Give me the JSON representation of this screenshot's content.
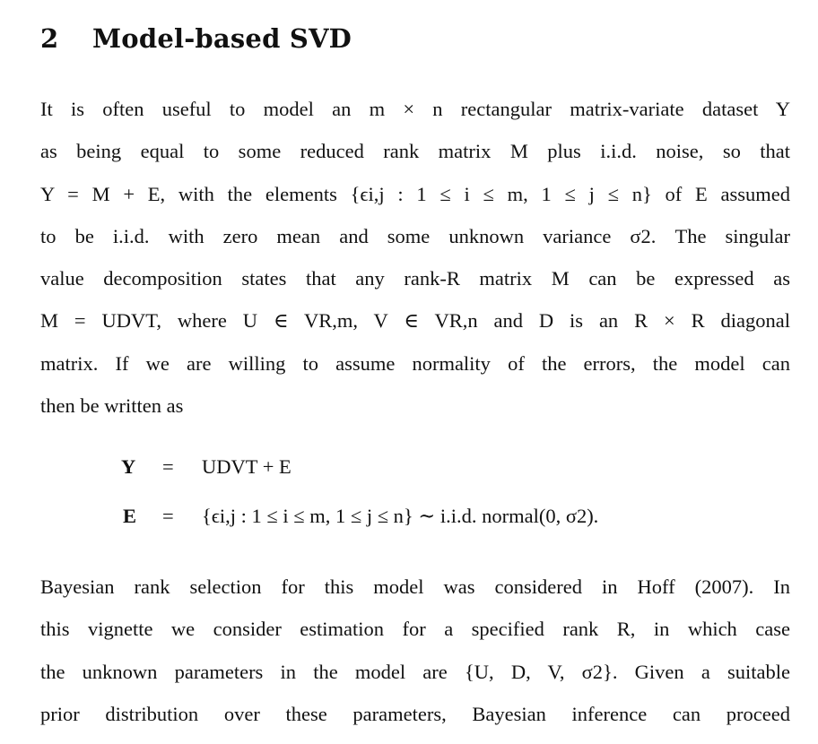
{
  "section": {
    "number": "2",
    "title": "Model-based SVD"
  },
  "paragraph1": {
    "lines": [
      "It is often useful to model an m × n rectangular matrix-variate dataset Y",
      "as being equal to some reduced rank matrix M plus i.i.d. noise, so that",
      "Y = M + E, with the elements {ϵi,j : 1 ≤ i ≤ m, 1 ≤ j ≤ n} of E assumed",
      "to be i.i.d. with zero mean and some unknown variance σ2. The singular",
      "value decomposition states that any rank-R matrix M can be expressed as",
      "M = UDVT, where U ∈ VR,m, V ∈ VR,n and D is an R × R diagonal",
      "matrix. If we are willing to assume normality of the errors, the model can",
      "then be written as"
    ]
  },
  "equations": [
    {
      "lhs": "Y",
      "rel": "=",
      "rhs": "UDVT + E"
    },
    {
      "lhs": "E",
      "rel": "=",
      "rhs": "{ϵi,j : 1 ≤ i ≤ m, 1 ≤ j ≤ n} ∼ i.i.d. normal(0, σ2)."
    }
  ],
  "paragraph2": {
    "lines": [
      "Bayesian rank selection for this model was considered in Hoff (2007). In",
      "this vignette we consider estimation for a specified rank R, in which case",
      "the unknown parameters in the model are {U, D, V, σ2}. Given a suitable",
      "prior distribution over these parameters, Bayesian inference can proceed"
    ]
  }
}
